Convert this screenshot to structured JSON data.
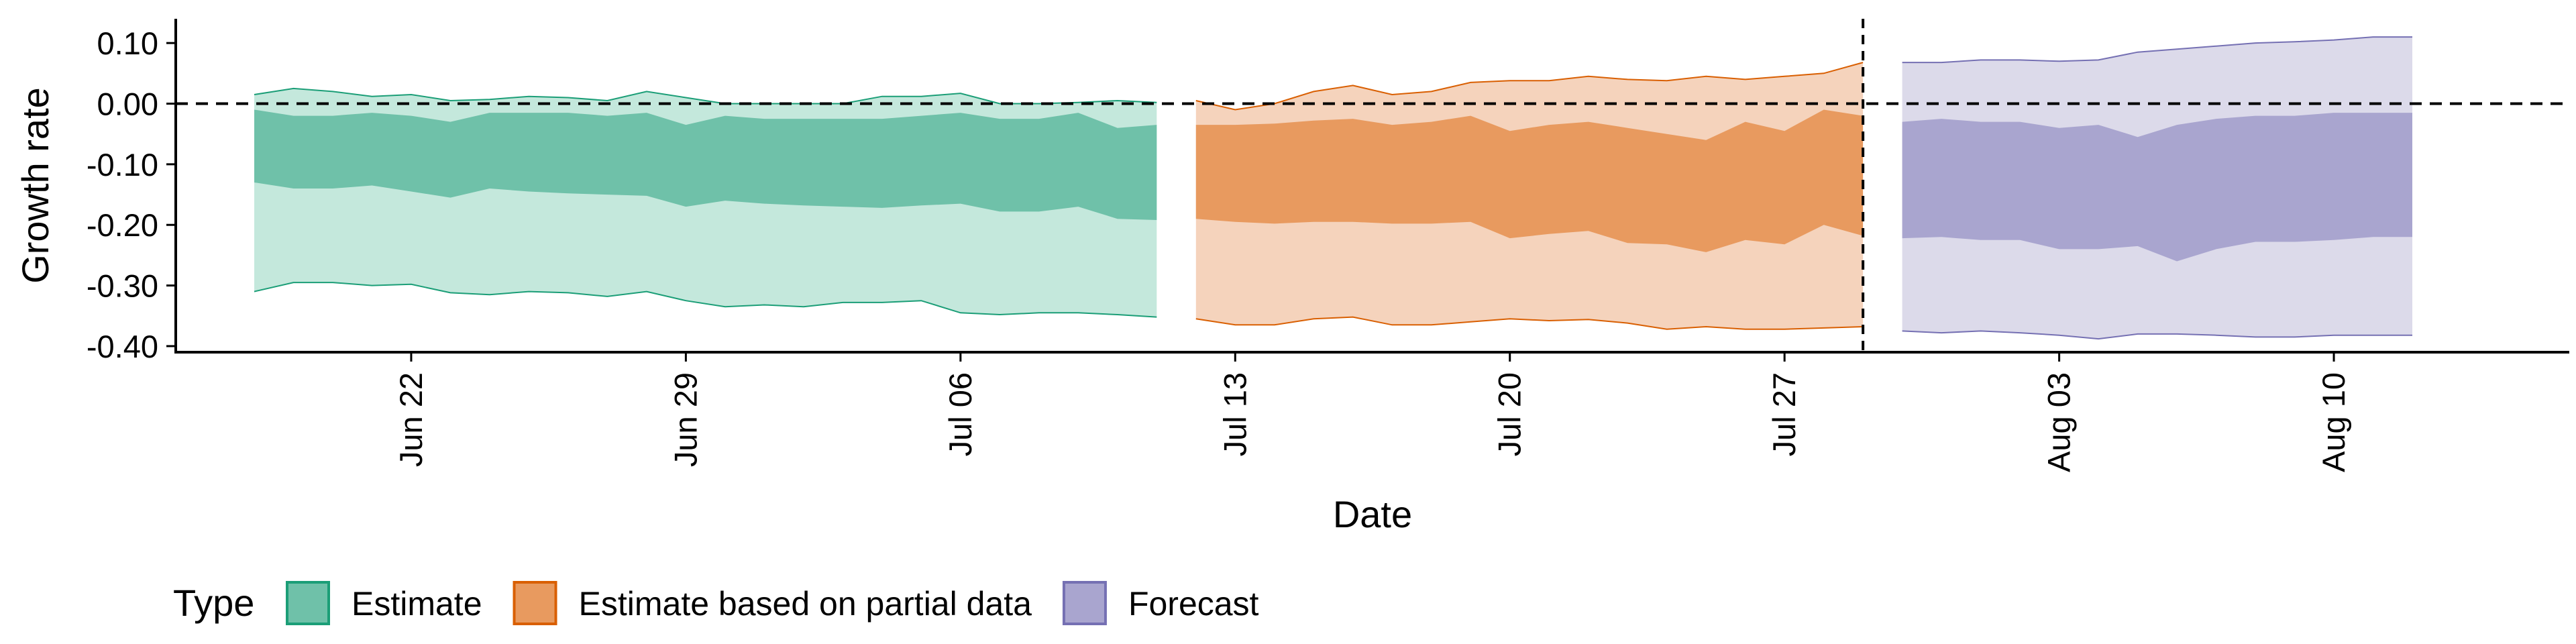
{
  "chart_data": {
    "type": "area",
    "xlabel": "Date",
    "ylabel": "Growth rate",
    "ylim": [
      -0.41,
      0.14
    ],
    "y_ticks": [
      "0.10",
      "0.00",
      "-0.10",
      "-0.20",
      "-0.30",
      "-0.40"
    ],
    "y_tick_values": [
      0.1,
      0.0,
      -0.1,
      -0.2,
      -0.3,
      -0.4
    ],
    "x_range": [
      "2020-06-16",
      "2020-08-16"
    ],
    "x_ticks": [
      "Jun 22",
      "Jun 29",
      "Jul 06",
      "Jul 13",
      "Jul 20",
      "Jul 27",
      "Aug 03",
      "Aug 10"
    ],
    "x_tick_dates": [
      "2020-06-22",
      "2020-06-29",
      "2020-07-06",
      "2020-07-13",
      "2020-07-20",
      "2020-07-27",
      "2020-08-03",
      "2020-08-10"
    ],
    "reference_hline": 0.0,
    "reference_vline": "2020-07-29",
    "grid": false,
    "legend_title": "Type",
    "legend_position": "bottom-left",
    "series": [
      {
        "name": "Estimate",
        "color": "#66c2a5",
        "outer_fill": "#c4e8dc",
        "inner_fill": "#6fc1a9",
        "line_color": "#1b9e77",
        "x": [
          "2020-06-18",
          "2020-06-19",
          "2020-06-20",
          "2020-06-21",
          "2020-06-22",
          "2020-06-23",
          "2020-06-24",
          "2020-06-25",
          "2020-06-26",
          "2020-06-27",
          "2020-06-28",
          "2020-06-29",
          "2020-06-30",
          "2020-07-01",
          "2020-07-02",
          "2020-07-03",
          "2020-07-04",
          "2020-07-05",
          "2020-07-06",
          "2020-07-07",
          "2020-07-08",
          "2020-07-09",
          "2020-07-10",
          "2020-07-11"
        ],
        "upper_90": [
          0.015,
          0.025,
          0.02,
          0.012,
          0.015,
          0.005,
          0.007,
          0.012,
          0.01,
          0.005,
          0.02,
          0.01,
          0.0,
          0.0,
          0.0,
          0.0,
          0.012,
          0.012,
          0.017,
          0.0,
          0.0,
          0.002,
          0.005,
          0.002
        ],
        "upper_50": [
          -0.01,
          -0.02,
          -0.02,
          -0.015,
          -0.02,
          -0.03,
          -0.015,
          -0.015,
          -0.015,
          -0.02,
          -0.015,
          -0.035,
          -0.02,
          -0.025,
          -0.025,
          -0.025,
          -0.025,
          -0.02,
          -0.015,
          -0.025,
          -0.025,
          -0.015,
          -0.04,
          -0.035
        ],
        "lower_50": [
          -0.13,
          -0.14,
          -0.14,
          -0.135,
          -0.145,
          -0.155,
          -0.14,
          -0.145,
          -0.148,
          -0.15,
          -0.152,
          -0.17,
          -0.16,
          -0.165,
          -0.168,
          -0.17,
          -0.172,
          -0.168,
          -0.165,
          -0.178,
          -0.178,
          -0.17,
          -0.19,
          -0.192
        ],
        "lower_90": [
          -0.31,
          -0.295,
          -0.295,
          -0.3,
          -0.298,
          -0.312,
          -0.315,
          -0.31,
          -0.312,
          -0.318,
          -0.31,
          -0.325,
          -0.335,
          -0.332,
          -0.335,
          -0.328,
          -0.328,
          -0.325,
          -0.345,
          -0.348,
          -0.345,
          -0.345,
          -0.348,
          -0.352
        ]
      },
      {
        "name": "Estimate based on partial data",
        "color": "#fc8d62",
        "outer_fill": "#f5d3bc",
        "inner_fill": "#e89a5f",
        "line_color": "#d95f02",
        "x": [
          "2020-07-12",
          "2020-07-13",
          "2020-07-14",
          "2020-07-15",
          "2020-07-16",
          "2020-07-17",
          "2020-07-18",
          "2020-07-19",
          "2020-07-20",
          "2020-07-21",
          "2020-07-22",
          "2020-07-23",
          "2020-07-24",
          "2020-07-25",
          "2020-07-26",
          "2020-07-27",
          "2020-07-28",
          "2020-07-29"
        ],
        "upper_90": [
          0.005,
          -0.01,
          0.0,
          0.02,
          0.03,
          0.015,
          0.02,
          0.035,
          0.038,
          0.038,
          0.045,
          0.04,
          0.038,
          0.045,
          0.04,
          0.045,
          0.05,
          0.068
        ],
        "upper_50": [
          -0.035,
          -0.035,
          -0.033,
          -0.028,
          -0.025,
          -0.035,
          -0.03,
          -0.02,
          -0.045,
          -0.035,
          -0.03,
          -0.04,
          -0.05,
          -0.06,
          -0.03,
          -0.045,
          -0.01,
          -0.02
        ],
        "lower_50": [
          -0.19,
          -0.195,
          -0.198,
          -0.195,
          -0.195,
          -0.198,
          -0.198,
          -0.195,
          -0.222,
          -0.215,
          -0.21,
          -0.23,
          -0.232,
          -0.245,
          -0.225,
          -0.232,
          -0.2,
          -0.218
        ],
        "lower_90": [
          -0.355,
          -0.365,
          -0.365,
          -0.355,
          -0.352,
          -0.365,
          -0.365,
          -0.36,
          -0.355,
          -0.358,
          -0.356,
          -0.362,
          -0.372,
          -0.368,
          -0.372,
          -0.372,
          -0.37,
          -0.368
        ]
      },
      {
        "name": "Forecast",
        "color": "#8da0cb",
        "outer_fill": "#dcdaea",
        "inner_fill": "#a9a5cf",
        "line_color": "#7570b3",
        "x": [
          "2020-07-30",
          "2020-07-31",
          "2020-08-01",
          "2020-08-02",
          "2020-08-03",
          "2020-08-04",
          "2020-08-05",
          "2020-08-06",
          "2020-08-07",
          "2020-08-08",
          "2020-08-09",
          "2020-08-10",
          "2020-08-11",
          "2020-08-12"
        ],
        "upper_90": [
          0.068,
          0.068,
          0.072,
          0.072,
          0.07,
          0.072,
          0.085,
          0.09,
          0.095,
          0.1,
          0.102,
          0.105,
          0.11,
          0.11
        ],
        "upper_50": [
          -0.03,
          -0.025,
          -0.03,
          -0.03,
          -0.04,
          -0.035,
          -0.055,
          -0.035,
          -0.025,
          -0.02,
          -0.02,
          -0.015,
          -0.015,
          -0.015
        ],
        "lower_50": [
          -0.222,
          -0.22,
          -0.225,
          -0.225,
          -0.24,
          -0.24,
          -0.235,
          -0.26,
          -0.24,
          -0.228,
          -0.228,
          -0.225,
          -0.22,
          -0.22
        ],
        "lower_90": [
          -0.375,
          -0.378,
          -0.375,
          -0.378,
          -0.382,
          -0.388,
          -0.38,
          -0.38,
          -0.382,
          -0.385,
          -0.385,
          -0.382,
          -0.382,
          -0.382
        ]
      }
    ]
  }
}
